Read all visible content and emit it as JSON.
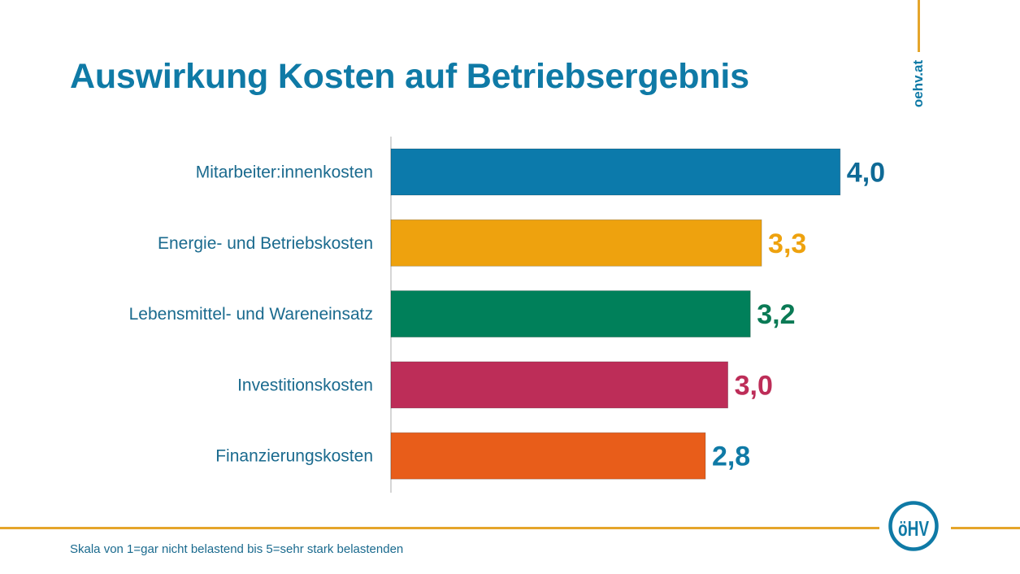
{
  "header": {
    "title": "Auswirkung Kosten auf Betriebsergebnis",
    "website": "oehv.at"
  },
  "footer": {
    "note": "Skala von 1=gar nicht belastend bis 5=sehr stark belastenden",
    "logo_text": "öHV"
  },
  "colors": {
    "brand_blue": "#0f7aa6",
    "accent_gold": "#e5a52b"
  },
  "chart_data": {
    "type": "bar",
    "orientation": "horizontal",
    "title": "Auswirkung Kosten auf Betriebsergebnis",
    "xlabel": "",
    "ylabel": "",
    "xlim": [
      0,
      5
    ],
    "grid": false,
    "legend": "none",
    "categories": [
      "Mitarbeiter:innenkosten",
      "Energie- und Betriebskosten",
      "Lebensmittel- und Wareneinsatz",
      "Investitionskosten",
      "Finanzierungskosten"
    ],
    "values": [
      4.0,
      3.3,
      3.2,
      3.0,
      2.8
    ],
    "value_labels": [
      "4,0",
      "3,3",
      "3,2",
      "3,0",
      "2,8"
    ],
    "bar_colors": [
      "#0c7aab",
      "#eea20e",
      "#00805a",
      "#bd2d58",
      "#e85d1a"
    ],
    "value_label_colors": [
      "#0f6a96",
      "#eea20e",
      "#0a7a55",
      "#bd2d58",
      "#0f7aa6"
    ],
    "note": "Skala von 1=gar nicht belastend bis 5=sehr stark belastenden"
  }
}
